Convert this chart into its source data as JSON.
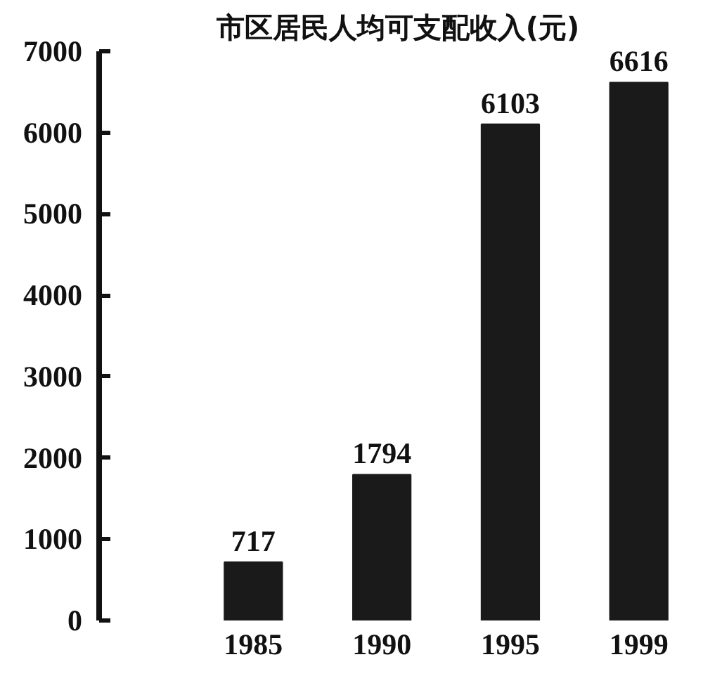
{
  "chart_data": {
    "type": "bar",
    "title": "市区居民人均可支配收入(元)",
    "categories": [
      "1985",
      "1990",
      "1995",
      "1999"
    ],
    "values": [
      717,
      1794,
      6103,
      6616
    ],
    "color": "#1a1a1a",
    "ylim": [
      0,
      7000
    ],
    "yticks": [
      0,
      1000,
      2000,
      3000,
      4000,
      5000,
      6000,
      7000
    ],
    "data_labels": true,
    "grid": false
  }
}
